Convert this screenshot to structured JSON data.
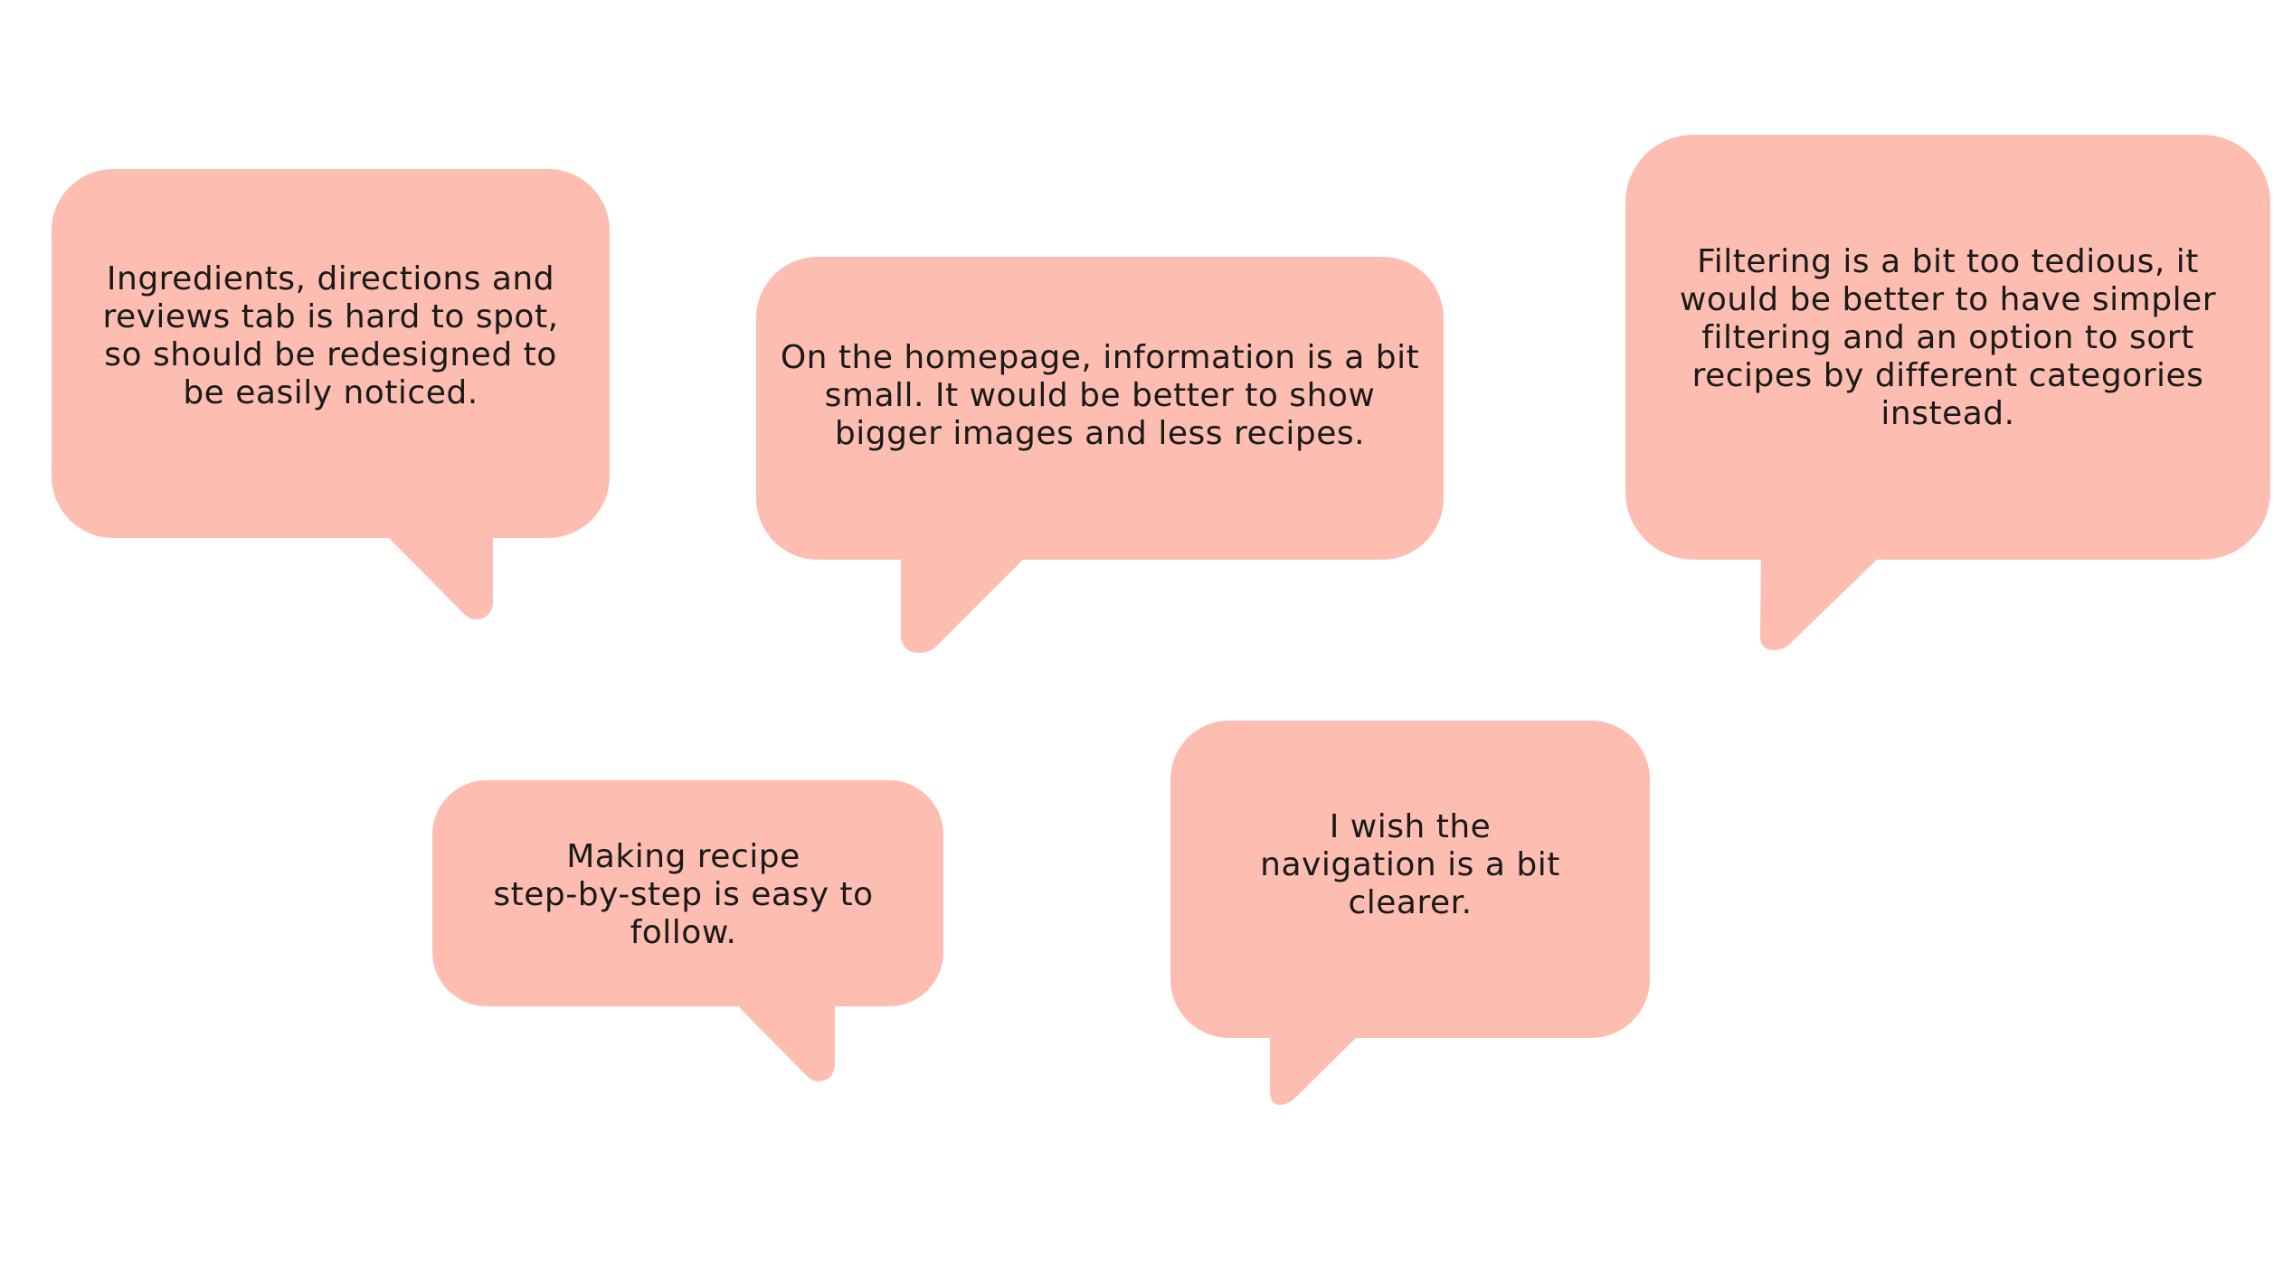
{
  "colors": {
    "bubble_fill": "#fdbdb0",
    "text": "#1a1a1a",
    "background": "#ffffff"
  },
  "comments": [
    {
      "text": "Ingredients, directions and\nreviews tab is hard to spot,\nso should be redesigned to\nbe easily noticed."
    },
    {
      "text": "On the homepage, information is a bit\nsmall. It would be better to show\nbigger images and less recipes."
    },
    {
      "text": "Filtering is a bit too tedious, it\nwould be better to have simpler\nfiltering and an option to sort\nrecipes by different categories\ninstead."
    },
    {
      "text": "Making recipe\nstep-by-step is easy to\nfollow."
    },
    {
      "text": "I wish the\nnavigation is a bit\nclearer."
    }
  ]
}
